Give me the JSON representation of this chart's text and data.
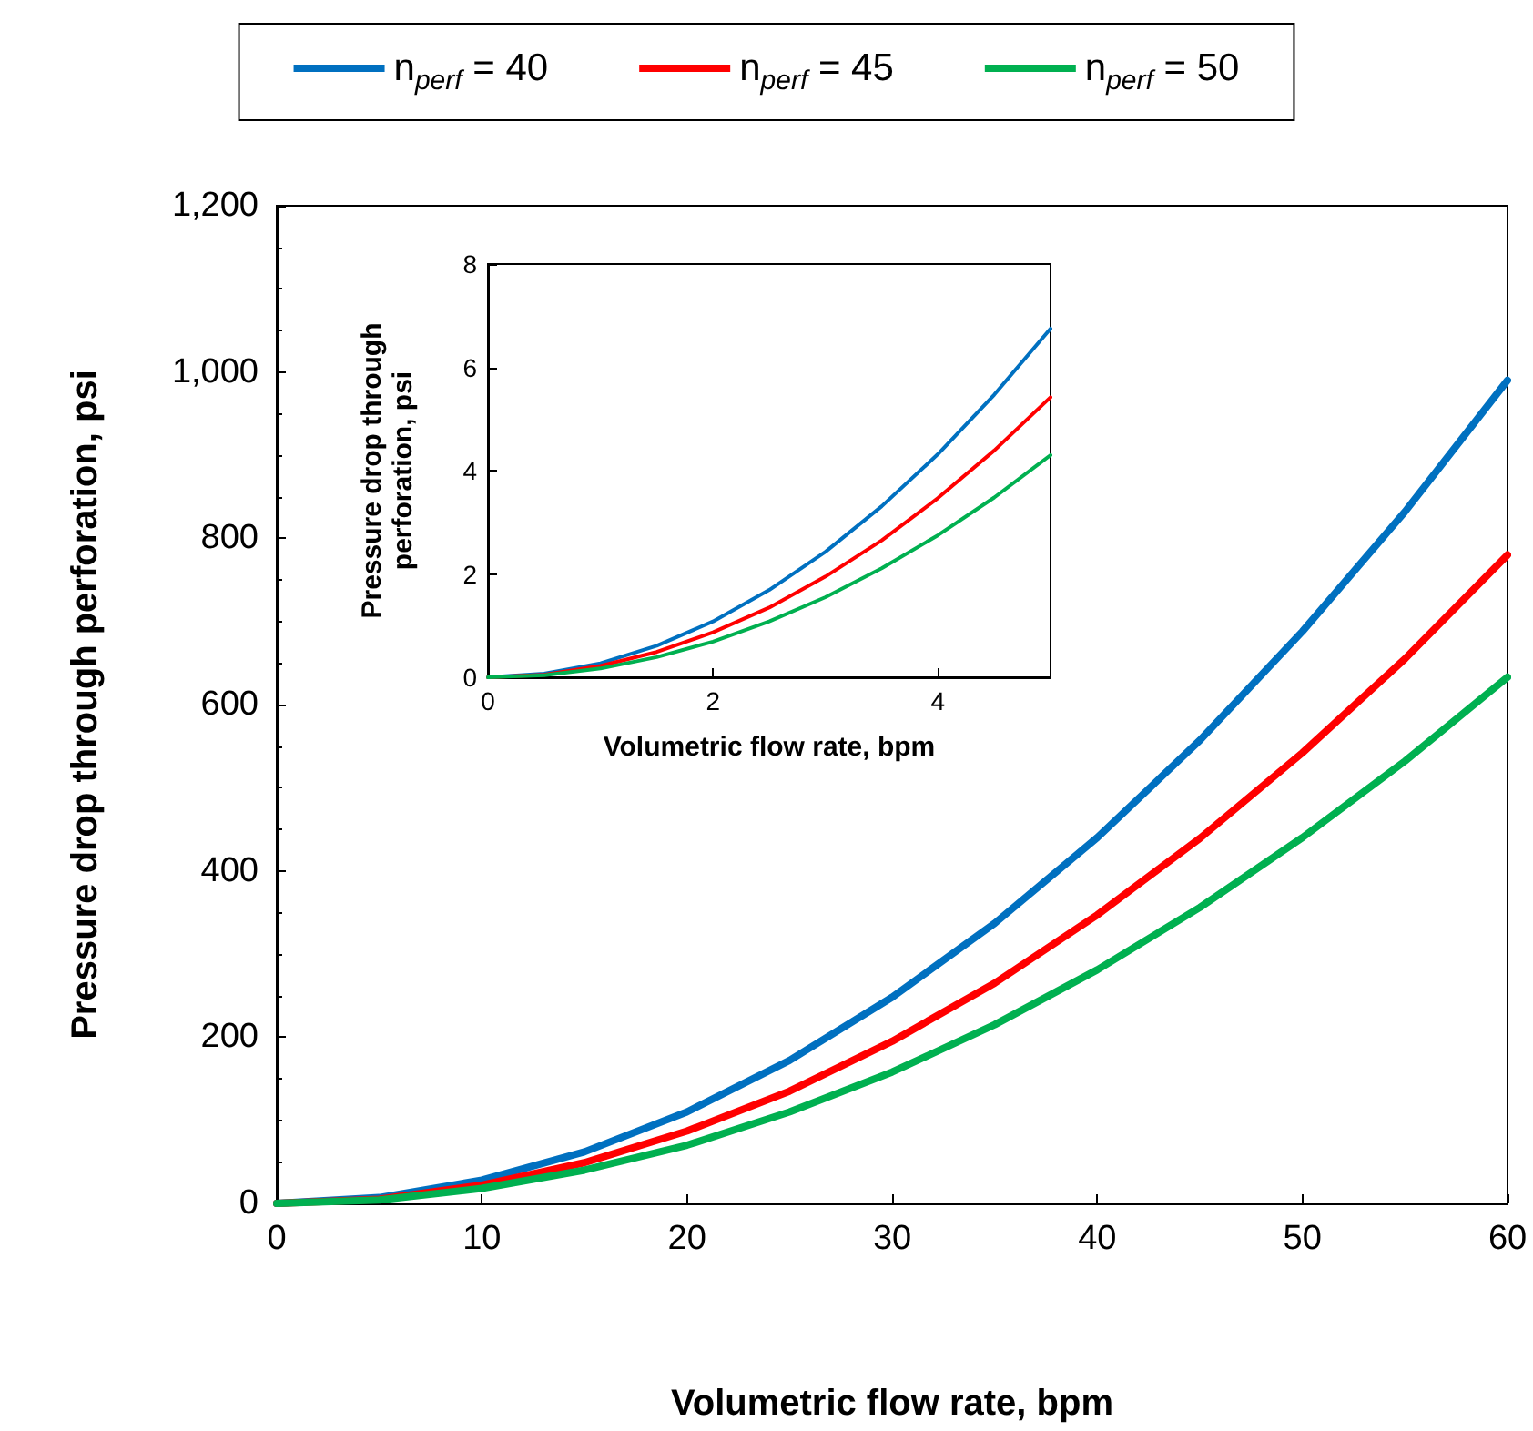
{
  "chart_data": [
    {
      "type": "line",
      "xlabel": "Volumetric flow rate, bpm",
      "ylabel": "Pressure drop through perforation, psi",
      "x": [
        0,
        5,
        10,
        15,
        20,
        25,
        30,
        35,
        40,
        45,
        50,
        55,
        60
      ],
      "series": [
        {
          "name": "n$_{perf}$ = 40",
          "color": "#0070c0",
          "values": [
            0,
            7,
            28,
            62,
            110,
            172,
            248,
            337,
            440,
            557,
            688,
            832,
            990
          ]
        },
        {
          "name": "n$_{perf}$ = 45",
          "color": "#ff0000",
          "values": [
            0,
            5,
            22,
            49,
            87,
            135,
            195,
            265,
            347,
            439,
            542,
            655,
            780
          ]
        },
        {
          "name": "n$_{perf}$ = 50",
          "color": "#00b050",
          "values": [
            0,
            4,
            18,
            40,
            70,
            110,
            158,
            215,
            281,
            356,
            440,
            532,
            633
          ]
        }
      ],
      "xlim": [
        0,
        60
      ],
      "xticks": [
        0,
        10,
        20,
        30,
        40,
        50,
        60
      ],
      "ylim": [
        0,
        1200
      ],
      "yticks": [
        0,
        200,
        400,
        600,
        800,
        {
          "value": 1000,
          "label": "1,000"
        },
        {
          "value": 1200,
          "label": "1,200"
        }
      ],
      "legend": "top",
      "grid": false,
      "marker": "none",
      "line_style": "solid"
    },
    {
      "type": "line",
      "xlabel": "Volumetric flow rate, bpm",
      "ylabel": "Pressure drop through perforation, psi",
      "x": [
        0,
        0.5,
        1,
        1.5,
        2,
        2.5,
        3,
        3.5,
        4,
        4.5,
        5
      ],
      "series": [
        {
          "color": "#0070c0",
          "values": [
            0,
            0.07,
            0.27,
            0.61,
            1.08,
            1.69,
            2.43,
            3.31,
            4.32,
            5.47,
            6.75
          ]
        },
        {
          "color": "#ff0000",
          "values": [
            0,
            0.05,
            0.22,
            0.49,
            0.87,
            1.35,
            1.95,
            2.65,
            3.47,
            4.39,
            5.42
          ]
        },
        {
          "color": "#00b050",
          "values": [
            0,
            0.04,
            0.17,
            0.39,
            0.69,
            1.08,
            1.55,
            2.11,
            2.75,
            3.48,
            4.3
          ]
        }
      ],
      "xlim": [
        0,
        5
      ],
      "xticks": [
        0,
        2,
        4
      ],
      "ylim": [
        0,
        8
      ],
      "yticks": [
        0,
        2,
        4,
        6,
        8
      ],
      "legend": false,
      "grid": false,
      "marker": "none",
      "line_style": "solid"
    }
  ]
}
